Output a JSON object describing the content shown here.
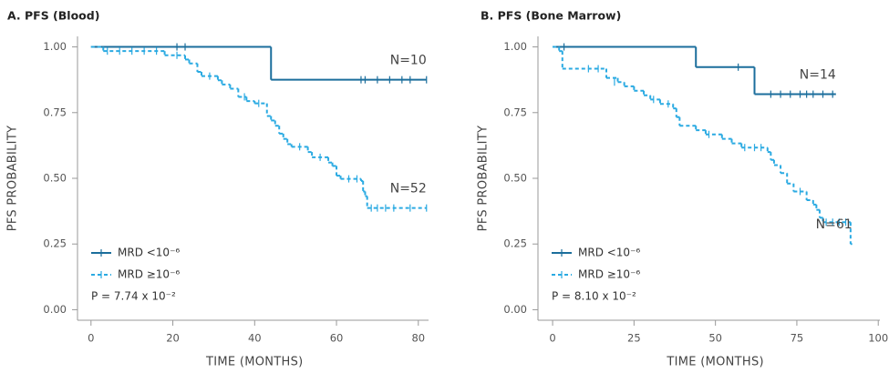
{
  "chart_data": [
    {
      "type": "step",
      "title": "A. PFS (Blood)",
      "xlabel": "TIME (MONTHS)",
      "ylabel": "PFS PROBABILITY",
      "xlim": [
        -3.3,
        82.5
      ],
      "xticks": [
        0,
        20,
        40,
        60,
        80
      ],
      "ylim": [
        -0.04,
        1.04
      ],
      "yticks": [
        {
          "value": 0,
          "label": "0.00"
        },
        0.25,
        {
          "value": 0.5,
          "label": "0.50"
        },
        0.75,
        {
          "value": 1,
          "label": "1.00"
        }
      ],
      "legend": "lower left",
      "annotation": "P = 7.74 x 10⁻²",
      "series": [
        {
          "name": "MRD <10⁻⁶",
          "color": "#1b6e9c",
          "dash": false,
          "n_label": "N=10",
          "x": [
            0,
            44,
            82
          ],
          "values": [
            1.0,
            0.875,
            0.875
          ],
          "censor_x": [
            21,
            23,
            66,
            67,
            70,
            73,
            76,
            78,
            82
          ],
          "censor_values": [
            1.0,
            1.0,
            0.875,
            0.875,
            0.875,
            0.875,
            0.875,
            0.875,
            0.875
          ]
        },
        {
          "name": "MRD ≥10⁻⁶",
          "color": "#2aaae2",
          "dash": true,
          "n_label": "N=52",
          "x": [
            0,
            3,
            18,
            23,
            24,
            26,
            27,
            31,
            32,
            34,
            36,
            38,
            40,
            43,
            44,
            45,
            46,
            47,
            48,
            49,
            53,
            54,
            58,
            59,
            60,
            61,
            66,
            66.5,
            67,
            67.5,
            82
          ],
          "values": [
            1.0,
            0.984,
            0.968,
            0.952,
            0.937,
            0.905,
            0.889,
            0.873,
            0.857,
            0.841,
            0.81,
            0.794,
            0.785,
            0.737,
            0.72,
            0.7,
            0.67,
            0.65,
            0.63,
            0.62,
            0.6,
            0.58,
            0.56,
            0.547,
            0.51,
            0.498,
            0.49,
            0.45,
            0.432,
            0.387,
            0.387
          ],
          "censor_x": [
            4,
            7,
            10,
            13,
            16,
            21,
            29,
            37.5,
            41,
            51,
            56,
            63,
            65,
            68.5,
            70,
            72,
            74,
            78,
            82
          ],
          "censor_values": [
            0.984,
            0.984,
            0.984,
            0.984,
            0.984,
            0.968,
            0.889,
            0.81,
            0.785,
            0.62,
            0.58,
            0.498,
            0.498,
            0.387,
            0.387,
            0.387,
            0.387,
            0.387,
            0.387
          ]
        }
      ]
    },
    {
      "type": "step",
      "title": "B. PFS (Bone Marrow)",
      "xlabel": "TIME (MONTHS)",
      "ylabel": "PFS PROBABILITY",
      "xlim": [
        -4.5,
        100.5
      ],
      "xticks": [
        0,
        25,
        50,
        75,
        100
      ],
      "ylim": [
        -0.04,
        1.04
      ],
      "yticks": [
        {
          "value": 0,
          "label": "0.00"
        },
        0.25,
        {
          "value": 0.5,
          "label": "0.50"
        },
        0.75,
        {
          "value": 1,
          "label": "1.00"
        }
      ],
      "legend": "lower left",
      "annotation": "P = 8.10 x 10⁻²",
      "series": [
        {
          "name": "MRD <10⁻⁶",
          "color": "#1b6e9c",
          "dash": false,
          "n_label": "N=14",
          "x": [
            0,
            44,
            62,
            87
          ],
          "values": [
            1.0,
            0.923,
            0.82,
            0.82
          ],
          "censor_x": [
            3.5,
            57,
            67,
            70,
            73,
            76,
            78,
            80,
            83,
            86
          ],
          "censor_values": [
            1.0,
            0.923,
            0.82,
            0.82,
            0.82,
            0.82,
            0.82,
            0.82,
            0.82,
            0.82
          ]
        },
        {
          "name": "MRD ≥10⁻⁶",
          "color": "#2aaae2",
          "dash": true,
          "n_label": "N=61",
          "x": [
            0,
            2,
            3,
            16.5,
            20,
            22,
            25,
            28,
            30,
            33,
            37,
            38,
            39,
            44,
            47,
            52,
            55,
            58,
            66,
            67,
            68,
            70,
            72,
            74,
            78,
            80,
            81,
            82,
            83,
            91.5,
            92
          ],
          "values": [
            1.0,
            0.984,
            0.917,
            0.882,
            0.866,
            0.85,
            0.833,
            0.816,
            0.8,
            0.783,
            0.766,
            0.733,
            0.7,
            0.683,
            0.667,
            0.65,
            0.633,
            0.617,
            0.6,
            0.57,
            0.55,
            0.52,
            0.48,
            0.45,
            0.417,
            0.4,
            0.38,
            0.35,
            0.333,
            0.25,
            0.25
          ],
          "censor_x": [
            11,
            14,
            19,
            31,
            35.5,
            48,
            59,
            62,
            64,
            76,
            84,
            86,
            88,
            90
          ],
          "censor_values": [
            0.917,
            0.917,
            0.866,
            0.8,
            0.783,
            0.667,
            0.617,
            0.617,
            0.617,
            0.45,
            0.333,
            0.333,
            0.333,
            0.333
          ]
        }
      ]
    }
  ]
}
